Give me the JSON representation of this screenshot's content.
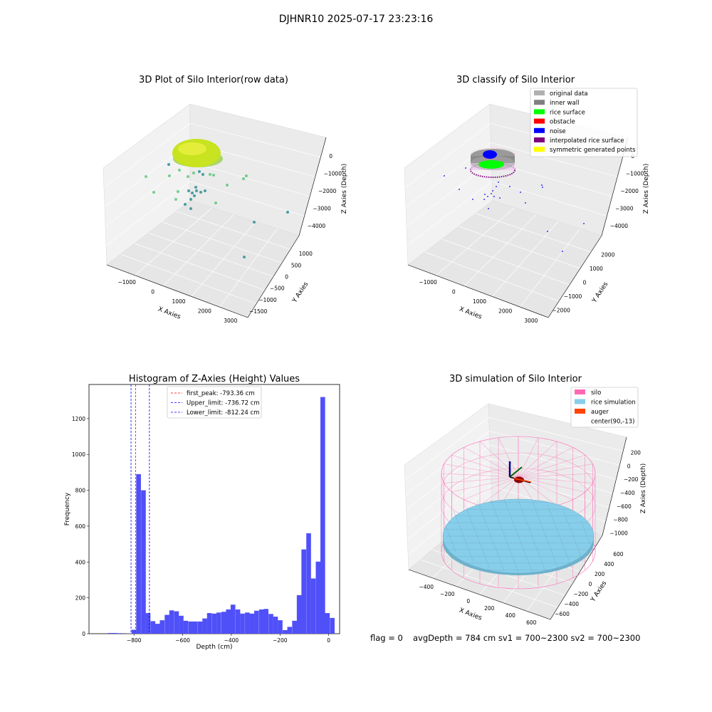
{
  "suptitle": "DJHNR10 2025-07-17 23:23:16",
  "colors": {
    "raw_dense": "#c8e31f",
    "raw_sparse_teal": "#2e8f93",
    "raw_sparse_green": "#5fc77a",
    "original_data": "#b0b0b0",
    "inner_wall": "#808080",
    "rice_surface": "#00ff00",
    "obstacle": "#ff0000",
    "noise": "#0000ff",
    "interpolated": "#800080",
    "symmetric": "#ffff00",
    "histogram_bar": "#5050f8",
    "silo": "#ff69b4",
    "rice_sim": "#87ceeb",
    "auger": "#ff4500"
  },
  "chart_data": [
    {
      "type": "scatter",
      "title": "3D Plot of Silo Interior(row data)",
      "xlabel": "X Axies",
      "ylabel": "Y Axies",
      "zlabel": "Z Axies (Depth)",
      "x_ticks": [
        "−1000",
        "0",
        "1000",
        "2000",
        "3000"
      ],
      "y_ticks": [
        "1000",
        "500",
        "0",
        "−500",
        "−1000",
        "−1500"
      ],
      "z_ticks": [
        "0",
        "−1000",
        "−2000",
        "−3000",
        "−4000"
      ],
      "xlim": [
        -1300,
        3500
      ],
      "ylim": [
        -1700,
        1300
      ],
      "zlim": [
        -4300,
        200
      ]
    },
    {
      "type": "scatter",
      "title": "3D classify of Silo Interior",
      "xlabel": "X Axies",
      "ylabel": "Y Axies",
      "zlabel": "Z Axies (Depth)",
      "x_ticks": [
        "−1000",
        "0",
        "1000",
        "2000",
        "3000"
      ],
      "y_ticks": [
        "2000",
        "1000",
        "0",
        "−1000",
        "−2000"
      ],
      "z_ticks": [
        "0",
        "−1000",
        "−2000",
        "−3000",
        "−4000"
      ],
      "legend_position": "top-right",
      "legend": [
        {
          "label": "original data",
          "color": "#b0b0b0"
        },
        {
          "label": "inner wall",
          "color": "#808080"
        },
        {
          "label": "rice surface",
          "color": "#00ff00"
        },
        {
          "label": "obstacle",
          "color": "#ff0000"
        },
        {
          "label": "noise",
          "color": "#0000ff"
        },
        {
          "label": "interpolated rice surface",
          "color": "#800080"
        },
        {
          "label": "symmetric generated points",
          "color": "#ffff00"
        }
      ]
    },
    {
      "type": "bar",
      "title": "Histogram of Z-Axies (Height) Values",
      "xlabel": "Depth (cm)",
      "ylabel": "Frequency",
      "xlim": [
        -985,
        45
      ],
      "ylim": [
        0,
        1390
      ],
      "x_ticks": [
        -800,
        -600,
        -400,
        -200,
        0
      ],
      "x_tick_labels": [
        "−800",
        "−600",
        "−400",
        "−200",
        "0"
      ],
      "y_ticks": [
        0,
        200,
        400,
        600,
        800,
        1000,
        1200
      ],
      "y_tick_labels": [
        "0",
        "200",
        "400",
        "600",
        "800",
        "1000",
        "1200"
      ],
      "bin_width": 19.4,
      "bins": [
        [
          -907,
          4
        ],
        [
          -888,
          4
        ],
        [
          -868,
          3
        ],
        [
          -849,
          0
        ],
        [
          -830,
          2
        ],
        [
          -810,
          22
        ],
        [
          -791,
          890
        ],
        [
          -771,
          800
        ],
        [
          -752,
          115
        ],
        [
          -732,
          70
        ],
        [
          -713,
          55
        ],
        [
          -694,
          75
        ],
        [
          -674,
          105
        ],
        [
          -655,
          130
        ],
        [
          -635,
          125
        ],
        [
          -616,
          100
        ],
        [
          -597,
          72
        ],
        [
          -577,
          68
        ],
        [
          -558,
          68
        ],
        [
          -538,
          68
        ],
        [
          -519,
          85
        ],
        [
          -500,
          115
        ],
        [
          -480,
          112
        ],
        [
          -461,
          118
        ],
        [
          -441,
          122
        ],
        [
          -422,
          135
        ],
        [
          -403,
          162
        ],
        [
          -383,
          135
        ],
        [
          -364,
          112
        ],
        [
          -344,
          118
        ],
        [
          -325,
          112
        ],
        [
          -306,
          128
        ],
        [
          -286,
          135
        ],
        [
          -267,
          138
        ],
        [
          -247,
          110
        ],
        [
          -228,
          95
        ],
        [
          -209,
          75
        ],
        [
          -189,
          20
        ],
        [
          -170,
          38
        ],
        [
          -150,
          72
        ],
        [
          -131,
          215
        ],
        [
          -112,
          470
        ],
        [
          -92,
          560
        ],
        [
          -73,
          308
        ],
        [
          -53,
          402
        ],
        [
          -34,
          1320
        ],
        [
          -15,
          115
        ],
        [
          5,
          88
        ]
      ],
      "vlines": [
        {
          "label": "first_peak: -793.36 cm",
          "x": -793.36,
          "color": "#ff0000"
        },
        {
          "label": "Upper_limit: -736.72 cm",
          "x": -736.72,
          "color": "#0000ff"
        },
        {
          "label": "Lower_limit: -812.24 cm",
          "x": -812.24,
          "color": "#0000ff"
        }
      ],
      "legend_position": "top-center"
    },
    {
      "type": "scatter",
      "title": "3D simulation of Silo Interior",
      "xlabel": "X Axies",
      "ylabel": "Y Axies",
      "zlabel": "Z Axies (Depth)",
      "x_ticks": [
        "−400",
        "−200",
        "0",
        "200",
        "400",
        "600"
      ],
      "y_ticks": [
        "600",
        "400",
        "200",
        "0",
        "−200",
        "−400",
        "−600"
      ],
      "z_ticks": [
        "200",
        "0",
        "−200",
        "−400",
        "−600",
        "−800",
        "−1000"
      ],
      "legend_position": "top-right",
      "legend": [
        {
          "label": "silo",
          "color": "#ff69b4"
        },
        {
          "label": "rice simulation",
          "color": "#87ceeb"
        },
        {
          "label": "auger",
          "color": "#ff4500"
        },
        {
          "label": "center(90,-13)",
          "color": ""
        }
      ]
    }
  ],
  "footer": {
    "flag": "flag = 0",
    "stats": "avgDepth = 784 cm  sv1 = 700~2300  sv2 = 700~2300"
  }
}
